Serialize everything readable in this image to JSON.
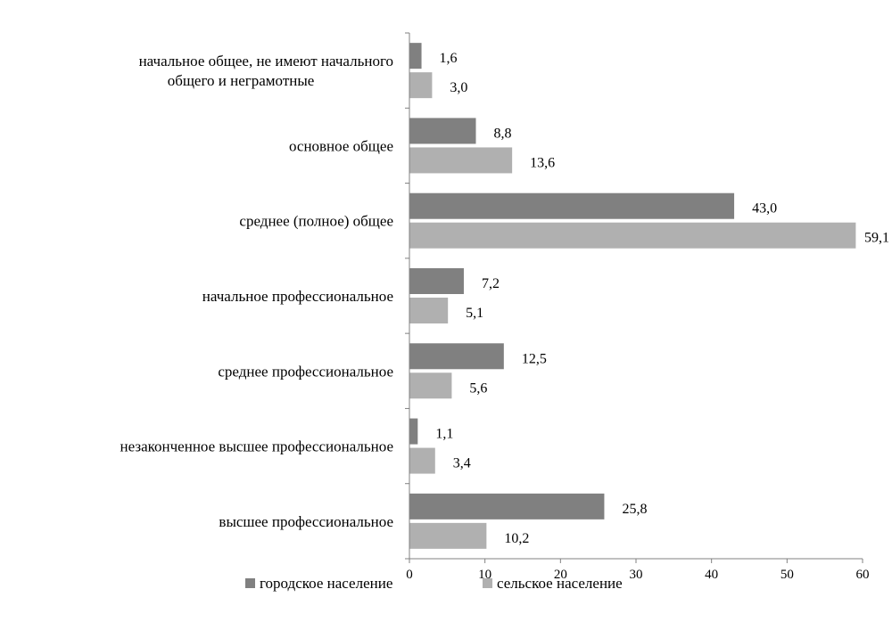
{
  "chart_data": {
    "type": "bar",
    "orientation": "horizontal",
    "categories": [
      [
        "начальное общее, не имеют начального",
        "общего и неграмотные"
      ],
      [
        "основное общее"
      ],
      [
        "среднее (полное) общее"
      ],
      [
        "начальное профессиональное"
      ],
      [
        "среднее профессиональное"
      ],
      [
        "незаконченное высшее профессиональное"
      ],
      [
        "высшее профессиональное"
      ]
    ],
    "series": [
      {
        "name": "городское население",
        "color": "#808080",
        "values": [
          1.6,
          8.8,
          43.0,
          7.2,
          12.5,
          1.1,
          25.8
        ],
        "labels": [
          "1,6",
          "8,8",
          "43,0",
          "7,2",
          "12,5",
          "1,1",
          "25,8"
        ]
      },
      {
        "name": "сельское население",
        "color": "#b0b0b0",
        "values": [
          3.0,
          13.6,
          59.1,
          5.1,
          5.6,
          3.4,
          10.2
        ],
        "labels": [
          "3,0",
          "13,6",
          "59,1",
          "5,1",
          "5,6",
          "3,4",
          "10,2"
        ]
      }
    ],
    "xlim": [
      0,
      60
    ],
    "xticks": [
      0,
      10,
      20,
      30,
      40,
      50,
      60
    ],
    "grid": false,
    "legend": "bottom"
  }
}
